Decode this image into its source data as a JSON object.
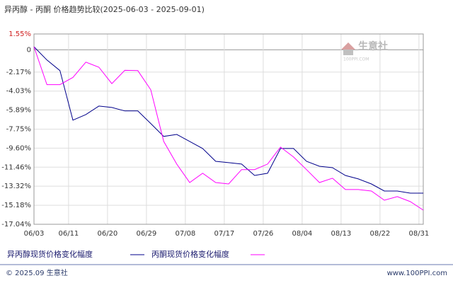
{
  "chart_data": {
    "type": "line",
    "title": "异丙醇 - 丙酮 价格趋势比较(2025-06-03 - 2025-09-01)",
    "watermark": "生意社",
    "watermark_sub": "100PPI.COM",
    "x": [
      "06/03",
      "06/06",
      "06/09",
      "06/12",
      "06/15",
      "06/18",
      "06/21",
      "06/24",
      "06/27",
      "06/30",
      "07/03",
      "07/06",
      "07/09",
      "07/12",
      "07/15",
      "07/18",
      "07/21",
      "07/24",
      "07/27",
      "07/30",
      "08/02",
      "08/05",
      "08/08",
      "08/11",
      "08/14",
      "08/17",
      "08/20",
      "08/23",
      "08/26",
      "08/29",
      "09/01"
    ],
    "xlim": [
      "06/03",
      "09/01"
    ],
    "xticks": [
      "06/03",
      "06/11",
      "06/20",
      "06/29",
      "07/08",
      "07/17",
      "07/26",
      "08/04",
      "08/13",
      "08/22",
      "08/31"
    ],
    "ylim": [
      -17.04,
      1.55
    ],
    "yticks": [
      {
        "value": 1.55,
        "label": "1.55%"
      },
      0,
      {
        "value": -2.17,
        "label": "-2.17%"
      },
      {
        "value": -4.03,
        "label": "-4.03%"
      },
      {
        "value": -5.89,
        "label": "-5.89%"
      },
      {
        "value": -7.75,
        "label": "-7.75%"
      },
      {
        "value": -9.6,
        "label": "-9.60%"
      },
      {
        "value": -11.46,
        "label": "-11.46%"
      },
      {
        "value": -13.32,
        "label": "-13.32%"
      },
      {
        "value": -15.18,
        "label": "-15.18%"
      },
      {
        "value": -17.04,
        "label": "-17.04%"
      }
    ],
    "grid": true,
    "series": [
      {
        "name": "异丙醇现货价格变化幅度",
        "color": "#00008b",
        "values": [
          0.3,
          -0.99,
          -2.03,
          -6.87,
          -6.32,
          -5.49,
          -5.63,
          -5.97,
          -5.97,
          -7.2,
          -8.46,
          -8.26,
          -8.95,
          -9.64,
          -10.89,
          -11.02,
          -11.16,
          -12.27,
          -12.06,
          -9.64,
          -9.64,
          -10.89,
          -11.37,
          -11.51,
          -12.27,
          -12.61,
          -13.1,
          -13.79,
          -13.79,
          -14.0,
          -14.0
        ]
      },
      {
        "name": "丙酮现货价格变化幅度",
        "color": "#ff00ff",
        "values": [
          0.3,
          -3.4,
          -3.4,
          -2.7,
          -1.2,
          -1.7,
          -3.3,
          -2.0,
          -2.03,
          -3.9,
          -8.95,
          -11.16,
          -12.96,
          -12.06,
          -12.96,
          -13.1,
          -11.7,
          -11.7,
          -11.16,
          -9.5,
          -10.47,
          -11.7,
          -12.96,
          -12.54,
          -13.65,
          -13.65,
          -13.79,
          -14.69,
          -14.34,
          -14.83,
          -15.66
        ]
      }
    ]
  },
  "footer": {
    "left": "© 2025.09 生意社",
    "right": "www.100PPI.com"
  }
}
